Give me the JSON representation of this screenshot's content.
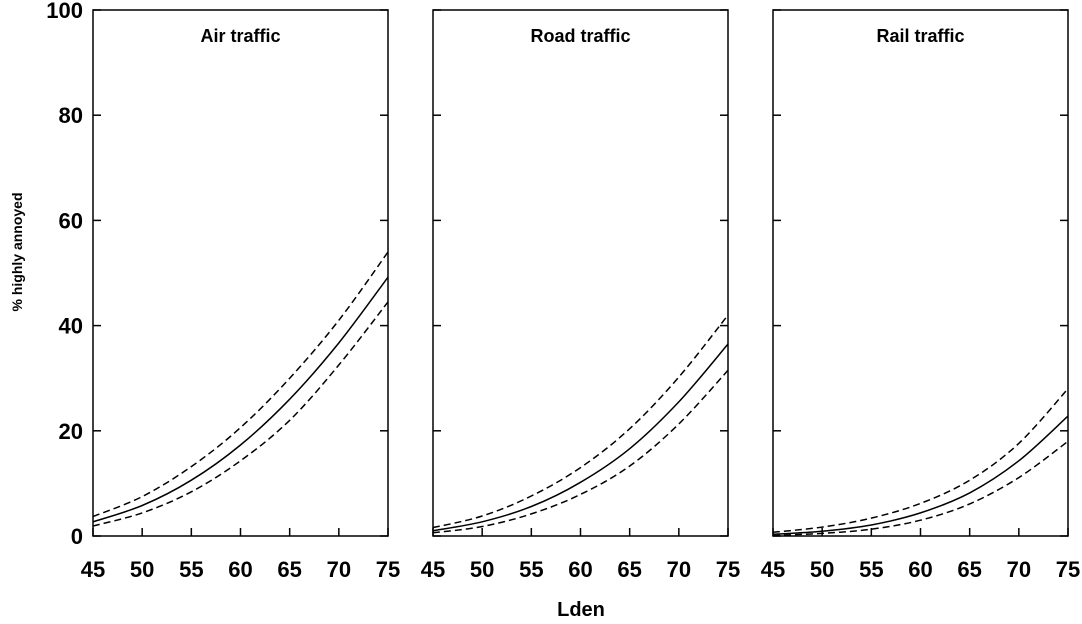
{
  "chart_data": {
    "type": "line",
    "xlabel": "Lden",
    "ylabel": "% highly annoyed",
    "xlim": [
      45,
      75
    ],
    "ylim": [
      0,
      100
    ],
    "x_ticks": [
      45,
      50,
      55,
      60,
      65,
      70,
      75
    ],
    "y_ticks": [
      0,
      20,
      40,
      60,
      80,
      100
    ],
    "grid": false,
    "legend": "none",
    "line_color": "#000000",
    "panels": [
      {
        "title": "Air traffic",
        "x": [
          45,
          50,
          55,
          60,
          65,
          70,
          75
        ],
        "series": [
          {
            "style": "dashed",
            "values": [
              3.7,
              7.5,
              13.2,
              20.6,
              30.0,
              41.0,
              54.0
            ]
          },
          {
            "style": "solid",
            "values": [
              2.7,
              5.8,
              10.6,
              17.3,
              26.0,
              36.7,
              49.2
            ]
          },
          {
            "style": "dashed",
            "values": [
              1.9,
              4.4,
              8.4,
              14.3,
              22.0,
              32.5,
              44.5
            ]
          }
        ]
      },
      {
        "title": "Road traffic",
        "x": [
          45,
          50,
          55,
          60,
          65,
          70,
          75
        ],
        "series": [
          {
            "style": "dashed",
            "values": [
              1.6,
              3.8,
              7.6,
              13.0,
              20.4,
              30.2,
              42.0
            ]
          },
          {
            "style": "solid",
            "values": [
              1.0,
              2.7,
              5.6,
              10.2,
              16.6,
              25.5,
              36.5
            ]
          },
          {
            "style": "dashed",
            "values": [
              0.6,
              1.8,
              4.2,
              7.9,
              13.3,
              21.3,
              31.5
            ]
          }
        ]
      },
      {
        "title": "Rail traffic",
        "x": [
          45,
          50,
          55,
          60,
          65,
          70,
          75
        ],
        "series": [
          {
            "style": "dashed",
            "values": [
              0.7,
              1.7,
              3.4,
              6.2,
              10.6,
              17.6,
              28.0
            ]
          },
          {
            "style": "solid",
            "values": [
              0.3,
              0.9,
              2.1,
              4.4,
              8.2,
              14.3,
              22.8
            ]
          },
          {
            "style": "dashed",
            "values": [
              0.1,
              0.5,
              1.3,
              3.0,
              6.1,
              11.1,
              18.0
            ]
          }
        ]
      }
    ]
  }
}
